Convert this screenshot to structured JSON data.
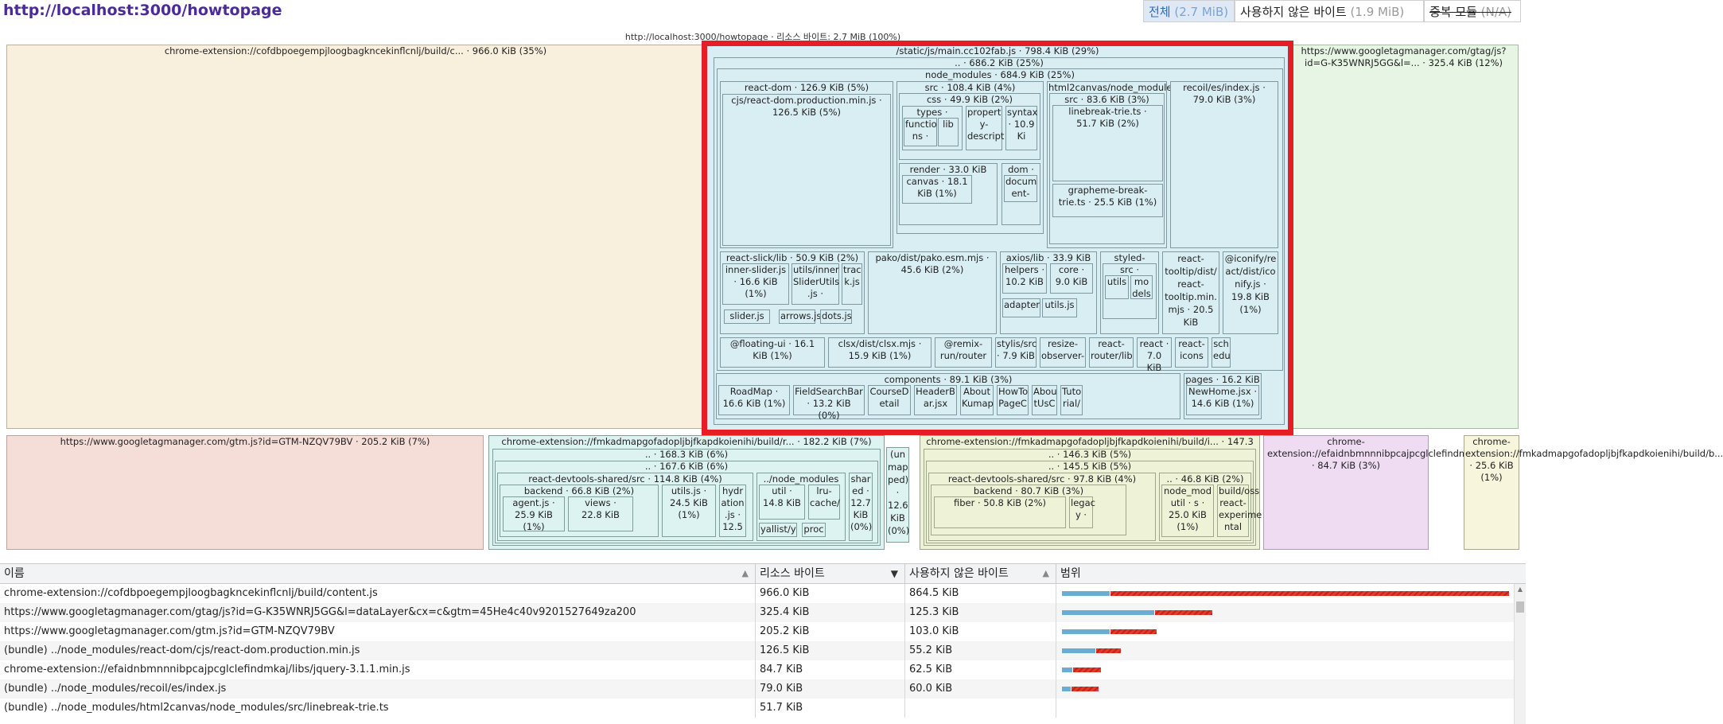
{
  "header": {
    "title": "http://localhost:3000/howtopage",
    "subtitle": "http://localhost:3000/howtopage · 리소스 바이트: 2.7 MiB (100%)",
    "modes": [
      {
        "label": "전체",
        "size": "(2.7 MiB)"
      },
      {
        "label": "사용하지 않은 바이트",
        "size": "(1.9 MiB)"
      },
      {
        "label": "중복 모듈",
        "size": "(N/A)"
      }
    ]
  },
  "treemap": {
    "content_js": "chrome-extension://cofdbpoegempjloogbagkncekinflcnlj/build/c... · 966.0 KiB (35%)",
    "main_js": "/static/js/main.cc102fab.js · 798.4 KiB (29%)",
    "main_root": ".. · 686.2 KiB (25%)",
    "node_modules": "node_modules · 684.9 KiB (25%)",
    "react_dom": "react-dom · 126.9 KiB (5%)",
    "react_dom_prod": "cjs/react-dom.production.min.js · 126.5 KiB (5%)",
    "src": "src · 108.4 KiB (4%)",
    "css": "css · 49.9 KiB (2%)",
    "types": "types ·",
    "functions": "functio ns ·",
    "lib": "lib",
    "property": "propert y-descript",
    "syntax": "syntax · 10.9 Ki",
    "render": "render · 33.0 KiB (1%)",
    "canvas": "canvas · 18.1 KiB (1%)",
    "dom": "dom ·",
    "document": "docum ent-",
    "html2canvas": "html2canvas/node_module",
    "h2c_src": "src · 83.6 KiB (3%)",
    "linebreak": "linebreak-trie.ts · 51.7 KiB (2%)",
    "grapheme": "grapheme-break-trie.ts · 25.5 KiB (1%)",
    "recoil": "recoil/es/index.js · 79.0 KiB (3%)",
    "react_slick": "react-slick/lib · 50.9 KiB (2%)",
    "inner_slider": "inner-slider.js · 16.6 KiB (1%)",
    "slider_utils": "utils/inner SliderUtils .js ·",
    "track": "trac k.js",
    "slider_js": "slider.js",
    "arrows_js": "arrows.js",
    "dots_js": "dots.js",
    "pako": "pako/dist/pako.esm.mjs · 45.6 KiB (2%)",
    "axios": "axios/lib · 33.9 KiB",
    "helpers": "helpers · 10.2 KiB",
    "core": "core · 9.0 KiB",
    "adapters": "adapter",
    "utils_js_axios": "utils.js",
    "styled": "styled-",
    "styled_src": "src ·",
    "styled_utils": "utils",
    "styled_models": "mo dels",
    "react_tooltip": "react-tooltip/dist/ react-tooltip.min. mjs · 20.5 KiB",
    "iconify": "@iconify/re act/dist/ico nify.js · 19.8 KiB (1%)",
    "floating_ui": "@floating-ui · 16.1 KiB (1%)",
    "clsx": "clsx/dist/clsx.mjs · 15.9 KiB (1%)",
    "remix": "@remix-run/router",
    "stylis": "stylis/src · 7.9 KiB",
    "resize": "resize-observer-",
    "react_router": "react-router/lib",
    "react_7": "react · 7.0 KiB",
    "react_icons": "react-icons",
    "scheduler": "sch edu",
    "components": "components · 89.1 KiB (3%)",
    "roadmap": "RoadMap · 16.6 KiB (1%)",
    "fieldsearch": "FieldSearchBar · 13.2 KiB (0%)",
    "coursedetail": "CourseD etail",
    "headerbar": "HeaderB ar.jsx",
    "aboutkumap": "About Kumap",
    "howto": "HowTo PageC",
    "aboutusc": "Abou tUsC",
    "tutorial": "Tuto rial/",
    "pages": "pages · 16.2 KiB",
    "newhome": "NewHome.jsx · 14.6 KiB (1%)",
    "gtag": "https://www.googletagmanager.com/gtag/js?id=G-K35WNRJ5GG&l=... · 325.4 KiB (12%)",
    "gtm": "https://www.googletagmanager.com/gtm.js?id=GTM-NZQV79BV · 205.2 KiB (7%)",
    "ext1": "chrome-extension://fmkadmapgofadopljbjfkapdkoienihi/build/r... · 182.2 KiB (7%)",
    "ext1_a": ".. · 168.3 KiB (6%)",
    "ext1_b": ".. · 167.6 KiB (6%)",
    "ext1_rds": "react-devtools-shared/src · 114.8 KiB (4%)",
    "ext1_backend": "backend · 66.8 KiB (2%)",
    "agent": "agent.js · 25.9 KiB (1%)",
    "views": "views · 22.8 KiB",
    "ext1_utils": "utils.js · 24.5 KiB (1%)",
    "hydration": "hydr ation .js · 12.5",
    "ext1_nm": "../node_modules",
    "util": "util · 14.8 KiB",
    "lru": "lru- cache/",
    "yallist": "yallist/y",
    "proc": "proc",
    "shared": "shar ed · 12.7 KiB (0%)",
    "unmapped": "(un map ped) · 12.6 KiB (0%)",
    "ext2": "chrome-extension://fmkadmapgofadopljbjfkapdkoienihi/build/i... · 147.3 KiB",
    "ext2_a": ".. · 146.3 KiB (5%)",
    "ext2_b": ".. · 145.5 KiB (5%)",
    "ext2_rds": "react-devtools-shared/src · 97.8 KiB (4%)",
    "ext2_backend": "backend · 80.7 KiB (3%)",
    "fiber": "fiber · 50.8 KiB (2%)",
    "legacy": "legac y ·",
    "ext2_nm_root": ".. · 46.8 KiB (2%)",
    "ext2_nm": "node_mod",
    "ext2_util": "util · s ·",
    "ext2_nm_size": "25.0 KiB (1%)",
    "build_oss": "build/oss",
    "react_exp": "react-experime ntal",
    "jquery": "chrome-extension://efaidnbmnnnibpcajpcglclefindmkaj/libs/jq... · 84.7 KiB (3%)",
    "ext4": "chrome-extension://fmkadmapgofadopljbjfkapdkoienihi/build/b... · 25.6 KiB (1%)"
  },
  "table": {
    "headers": [
      "이름",
      "리소스 바이트",
      "사용하지 않은 바이트",
      "범위"
    ],
    "rows": [
      {
        "name": "chrome-extension://cofdbpoegempjloogbagkncekinflcnlj/build/content.js",
        "bytes": "966.0 KiB",
        "unused": "864.5 KiB",
        "used_frac": 0.106,
        "total_frac": 1.0
      },
      {
        "name": "https://www.googletagmanager.com/gtag/js?id=G-K35WNRJ5GG&l=dataLayer&cx=c&gtm=45He4c40v9201527649za200",
        "bytes": "325.4 KiB",
        "unused": "125.3 KiB",
        "used_frac": 0.207,
        "total_frac": 0.337
      },
      {
        "name": "https://www.googletagmanager.com/gtm.js?id=GTM-NZQV79BV",
        "bytes": "205.2 KiB",
        "unused": "103.0 KiB",
        "used_frac": 0.106,
        "total_frac": 0.212
      },
      {
        "name": "(bundle) ../node_modules/react-dom/cjs/react-dom.production.min.js",
        "bytes": "126.5 KiB",
        "unused": "55.2 KiB",
        "used_frac": 0.074,
        "total_frac": 0.131
      },
      {
        "name": "chrome-extension://efaidnbmnnnibpcajpcglclefindmkaj/libs/jquery-3.1.1.min.js",
        "bytes": "84.7 KiB",
        "unused": "62.5 KiB",
        "used_frac": 0.023,
        "total_frac": 0.088
      },
      {
        "name": "(bundle) ../node_modules/recoil/es/index.js",
        "bytes": "79.0 KiB",
        "unused": "60.0 KiB",
        "used_frac": 0.02,
        "total_frac": 0.082
      },
      {
        "name": "(bundle) ../node_modules/html2canvas/node_modules/src/linebreak-trie.ts",
        "bytes": "51.7 KiB",
        "unused": "",
        "used_frac": 0,
        "total_frac": 0
      }
    ]
  },
  "colors": {
    "title": "#4b2a9c",
    "highlight": "#e31e24",
    "used_bar": "#6aaecd",
    "unused_bar": "#e23b2e"
  }
}
